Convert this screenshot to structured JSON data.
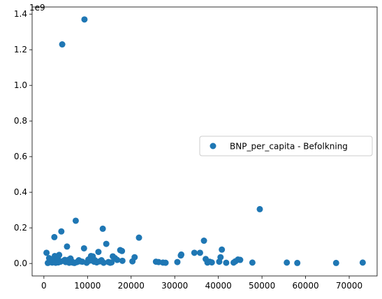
{
  "chart_data": {
    "type": "scatter",
    "series": [
      {
        "name": "BNP_per_capita - Befolkning",
        "color": "#1f77b4",
        "points": [
          [
            9300,
            1.37
          ],
          [
            4200,
            1.23
          ],
          [
            49500,
            0.305
          ],
          [
            7300,
            0.24
          ],
          [
            13500,
            0.195
          ],
          [
            2400,
            0.148
          ],
          [
            21800,
            0.145
          ],
          [
            4000,
            0.18
          ],
          [
            36700,
            0.128
          ],
          [
            14300,
            0.11
          ],
          [
            5300,
            0.095
          ],
          [
            9200,
            0.085
          ],
          [
            40800,
            0.078
          ],
          [
            17500,
            0.075
          ],
          [
            12500,
            0.065
          ],
          [
            35800,
            0.06
          ],
          [
            34500,
            0.06
          ],
          [
            600,
            0.06
          ],
          [
            31500,
            0.05
          ],
          [
            31400,
            0.045
          ],
          [
            10800,
            0.042
          ],
          [
            11200,
            0.04
          ],
          [
            3500,
            0.048
          ],
          [
            15800,
            0.04
          ],
          [
            17900,
            0.07
          ],
          [
            2500,
            0.042
          ],
          [
            20800,
            0.035
          ],
          [
            40500,
            0.035
          ],
          [
            37100,
            0.025
          ],
          [
            44500,
            0.022
          ],
          [
            45000,
            0.02
          ],
          [
            16300,
            0.03
          ],
          [
            1200,
            0.03
          ],
          [
            3000,
            0.025
          ],
          [
            6100,
            0.028
          ],
          [
            8000,
            0.018
          ],
          [
            11700,
            0.018
          ],
          [
            18000,
            0.015
          ],
          [
            20300,
            0.012
          ],
          [
            25700,
            0.01
          ],
          [
            26300,
            0.008
          ],
          [
            27300,
            0.005
          ],
          [
            27900,
            0.004
          ],
          [
            30600,
            0.008
          ],
          [
            37500,
            0.005
          ],
          [
            38000,
            0.01
          ],
          [
            38500,
            0.006
          ],
          [
            40200,
            0.01
          ],
          [
            41800,
            0.004
          ],
          [
            43500,
            0.005
          ],
          [
            43900,
            0.012
          ],
          [
            47800,
            0.005
          ],
          [
            55700,
            0.005
          ],
          [
            58100,
            0.003
          ],
          [
            67000,
            0.003
          ],
          [
            73100,
            0.005
          ],
          [
            900,
            0.003
          ],
          [
            1500,
            0.008
          ],
          [
            1900,
            0.005
          ],
          [
            2200,
            0.012
          ],
          [
            2800,
            0.018
          ],
          [
            3300,
            0.006
          ],
          [
            3800,
            0.01
          ],
          [
            4500,
            0.015
          ],
          [
            5000,
            0.008
          ],
          [
            5600,
            0.02
          ],
          [
            6600,
            0.005
          ],
          [
            7000,
            0.003
          ],
          [
            7600,
            0.008
          ],
          [
            8400,
            0.012
          ],
          [
            9800,
            0.004
          ],
          [
            10200,
            0.022
          ],
          [
            11500,
            0.01
          ],
          [
            12100,
            0.006
          ],
          [
            12800,
            0.012
          ],
          [
            13700,
            0.004
          ],
          [
            14800,
            0.008
          ],
          [
            15200,
            0.004
          ],
          [
            15500,
            0.006
          ],
          [
            16800,
            0.02
          ],
          [
            2000,
            0.022
          ],
          [
            3200,
            0.03
          ],
          [
            4800,
            0.02
          ],
          [
            6400,
            0.012
          ],
          [
            8800,
            0.01
          ],
          [
            10500,
            0.016
          ],
          [
            13200,
            0.018
          ],
          [
            2700,
            0.004
          ],
          [
            5800,
            0.004
          ]
        ]
      }
    ],
    "xlim": [
      -2700,
      76400
    ],
    "ylim": [
      -0.07,
      1.44
    ],
    "xticks": [
      0,
      10000,
      20000,
      30000,
      40000,
      50000,
      60000,
      70000
    ],
    "xtick_labels": [
      "0",
      "10000",
      "20000",
      "30000",
      "40000",
      "50000",
      "60000",
      "70000"
    ],
    "yticks": [
      0.0,
      0.2,
      0.4,
      0.6,
      0.8,
      1.0,
      1.2,
      1.4
    ],
    "ytick_labels": [
      "0.0",
      "0.2",
      "0.4",
      "0.6",
      "0.8",
      "1.0",
      "1.2",
      "1.4"
    ],
    "y_offset_text": "1e9",
    "legend": {
      "placement": "center-right",
      "entries": [
        "BNP_per_capita - Befolkning"
      ]
    },
    "grid": false
  }
}
